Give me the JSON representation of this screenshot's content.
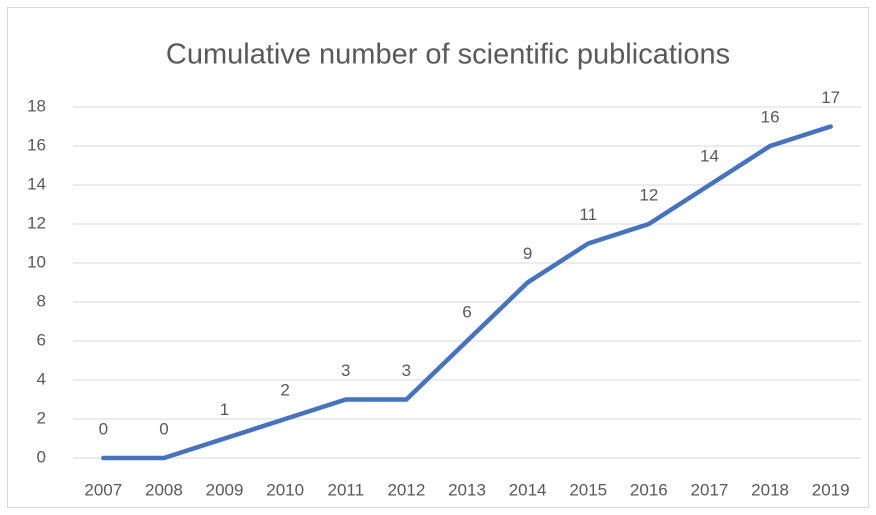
{
  "chart_data": {
    "type": "line",
    "title": "Cumulative number of scientific publications",
    "categories": [
      "2007",
      "2008",
      "2009",
      "2010",
      "2011",
      "2012",
      "2013",
      "2014",
      "2015",
      "2016",
      "2017",
      "2018",
      "2019"
    ],
    "values": [
      0,
      0,
      1,
      2,
      3,
      3,
      6,
      9,
      11,
      12,
      14,
      16,
      17
    ],
    "color": "#4472c4",
    "ylim": [
      0,
      18
    ],
    "yticks": [
      0,
      2,
      4,
      6,
      8,
      10,
      12,
      14,
      16,
      18
    ],
    "grid": true,
    "data_labels": true
  }
}
